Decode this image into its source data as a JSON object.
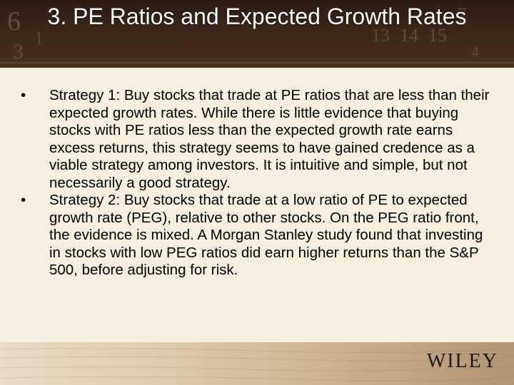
{
  "slide": {
    "title": "3. PE Ratios and Expected Growth Rates",
    "bullets": [
      {
        "marker": "•",
        "text": "Strategy 1: Buy stocks that trade at PE ratios that are less than their expected growth rates. While there is little evidence that buying stocks with PE ratios less than the expected growth rate earns excess returns, this strategy seems to have gained credence as a viable strategy among investors. It is intuitive and simple, but not necessarily a good strategy."
      },
      {
        "marker": "•",
        "text": "Strategy 2: Buy stocks that trade at a low ratio of PE to expected growth rate (PEG), relative to other stocks. On the PEG ratio front, the evidence is mixed. A Morgan Stanley study found that investing in stocks with low PEG ratios did earn higher returns than the S&P 500, before adjusting for risk."
      }
    ]
  },
  "footer": {
    "logo": "WILEY"
  },
  "colors": {
    "header_bg": "#3a2619",
    "body_bg": "#f5efdf",
    "title_text": "#ffffff"
  }
}
